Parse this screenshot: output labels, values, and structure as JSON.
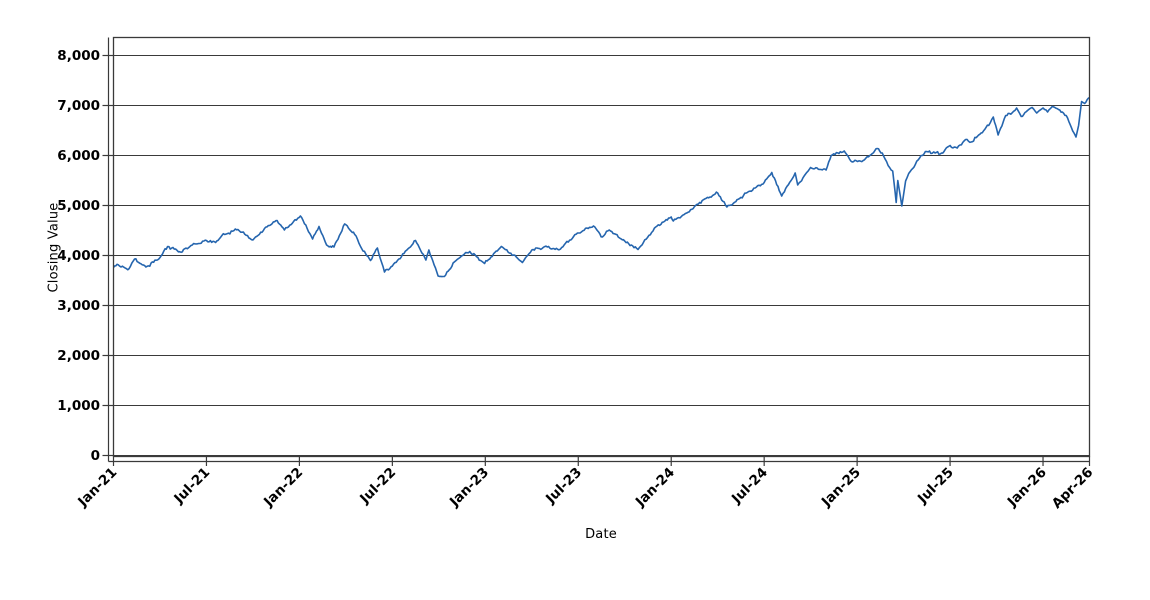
{
  "figure": {
    "background": "#ffffff"
  },
  "chart_data": {
    "type": "line",
    "title": "",
    "xlabel": "Date",
    "ylabel": "Closing Value",
    "grid": "horizontal",
    "legend": null,
    "ylim": [
      0,
      8360
    ],
    "x_months_span": 63,
    "x_ticks": [
      {
        "m": 0,
        "label": "Jan-21"
      },
      {
        "m": 6,
        "label": "Jul-21"
      },
      {
        "m": 12,
        "label": "Jan-22"
      },
      {
        "m": 18,
        "label": "Jul-22"
      },
      {
        "m": 24,
        "label": "Jan-23"
      },
      {
        "m": 30,
        "label": "Jul-23"
      },
      {
        "m": 36,
        "label": "Jan-24"
      },
      {
        "m": 42,
        "label": "Jul-24"
      },
      {
        "m": 48,
        "label": "Jan-25"
      },
      {
        "m": 54,
        "label": "Jul-25"
      },
      {
        "m": 60,
        "label": "Jan-26"
      },
      {
        "m": 63,
        "label": "Apr-26"
      }
    ],
    "y_ticks": [
      {
        "value": 0,
        "label": "0"
      },
      {
        "value": 1000,
        "label": "1,000"
      },
      {
        "value": 2000,
        "label": "2,000"
      },
      {
        "value": 3000,
        "label": "3,000"
      },
      {
        "value": 4000,
        "label": "4,000"
      },
      {
        "value": 5000,
        "label": "5,000"
      },
      {
        "value": 6000,
        "label": "6,000"
      },
      {
        "value": 7000,
        "label": "7,000"
      },
      {
        "value": 8000,
        "label": "8,000"
      }
    ],
    "colors": {
      "line": "#2565ae",
      "grid": "#3a3a3a",
      "frame": "#3a3a3a",
      "axis": "#3a3a3a",
      "text": "#000000"
    },
    "series": [
      {
        "name": "Closing Value",
        "points": [
          [
            "2021-01-01",
            3760
          ],
          [
            "2021-01-08",
            3825
          ],
          [
            "2021-01-29",
            3715
          ],
          [
            "2021-02-12",
            3930
          ],
          [
            "2021-03-04",
            3770
          ],
          [
            "2021-04-01",
            3960
          ],
          [
            "2021-04-16",
            4180
          ],
          [
            "2021-05-12",
            4065
          ],
          [
            "2021-06-01",
            4200
          ],
          [
            "2021-07-01",
            4300
          ],
          [
            "2021-07-19",
            4260
          ],
          [
            "2021-08-01",
            4400
          ],
          [
            "2021-09-02",
            4520
          ],
          [
            "2021-10-01",
            4310
          ],
          [
            "2021-11-01",
            4600
          ],
          [
            "2021-11-18",
            4700
          ],
          [
            "2021-12-02",
            4510
          ],
          [
            "2022-01-03",
            4790
          ],
          [
            "2022-01-27",
            4330
          ],
          [
            "2022-02-09",
            4580
          ],
          [
            "2022-02-24",
            4210
          ],
          [
            "2022-03-08",
            4170
          ],
          [
            "2022-03-29",
            4630
          ],
          [
            "2022-04-21",
            4390
          ],
          [
            "2022-05-02",
            4130
          ],
          [
            "2022-05-19",
            3900
          ],
          [
            "2022-06-02",
            4150
          ],
          [
            "2022-06-16",
            3670
          ],
          [
            "2022-07-01",
            3790
          ],
          [
            "2022-08-01",
            4130
          ],
          [
            "2022-08-16",
            4300
          ],
          [
            "2022-09-06",
            3910
          ],
          [
            "2022-09-12",
            4110
          ],
          [
            "2022-09-30",
            3590
          ],
          [
            "2022-10-12",
            3580
          ],
          [
            "2022-11-01",
            3870
          ],
          [
            "2022-11-15",
            3990
          ],
          [
            "2022-12-01",
            4080
          ],
          [
            "2022-12-30",
            3840
          ],
          [
            "2023-02-02",
            4180
          ],
          [
            "2023-03-01",
            3970
          ],
          [
            "2023-03-13",
            3860
          ],
          [
            "2023-04-01",
            4110
          ],
          [
            "2023-05-01",
            4170
          ],
          [
            "2023-05-24",
            4115
          ],
          [
            "2023-06-30",
            4450
          ],
          [
            "2023-07-31",
            4590
          ],
          [
            "2023-08-18",
            4370
          ],
          [
            "2023-09-01",
            4510
          ],
          [
            "2023-10-01",
            4290
          ],
          [
            "2023-10-27",
            4120
          ],
          [
            "2023-12-01",
            4570
          ],
          [
            "2024-01-01",
            4770
          ],
          [
            "2024-01-05",
            4690
          ],
          [
            "2024-02-01",
            4850
          ],
          [
            "2024-03-01",
            5100
          ],
          [
            "2024-04-01",
            5250
          ],
          [
            "2024-04-19",
            4970
          ],
          [
            "2024-05-01",
            5040
          ],
          [
            "2024-06-01",
            5280
          ],
          [
            "2024-07-01",
            5460
          ],
          [
            "2024-07-16",
            5660
          ],
          [
            "2024-08-05",
            5190
          ],
          [
            "2024-09-01",
            5650
          ],
          [
            "2024-09-06",
            5410
          ],
          [
            "2024-10-01",
            5760
          ],
          [
            "2024-11-01",
            5710
          ],
          [
            "2024-11-11",
            6000
          ],
          [
            "2024-12-06",
            6090
          ],
          [
            "2024-12-19",
            5890
          ],
          [
            "2025-01-02",
            5880
          ],
          [
            "2025-01-13",
            5900
          ],
          [
            "2025-01-31",
            6040
          ],
          [
            "2025-02-10",
            6140
          ],
          [
            "2025-02-20",
            6050
          ],
          [
            "2025-03-01",
            5800
          ],
          [
            "2025-03-10",
            5690
          ],
          [
            "2025-03-17",
            5060
          ],
          [
            "2025-03-20",
            5500
          ],
          [
            "2025-03-28",
            4990
          ],
          [
            "2025-04-05",
            5490
          ],
          [
            "2025-04-14",
            5680
          ],
          [
            "2025-04-24",
            5820
          ],
          [
            "2025-05-05",
            6000
          ],
          [
            "2025-05-16",
            6080
          ],
          [
            "2025-06-02",
            6050
          ],
          [
            "2025-06-12",
            6030
          ],
          [
            "2025-07-01",
            6200
          ],
          [
            "2025-07-15",
            6150
          ],
          [
            "2025-08-01",
            6320
          ],
          [
            "2025-08-12",
            6270
          ],
          [
            "2025-09-01",
            6450
          ],
          [
            "2025-09-16",
            6600
          ],
          [
            "2025-09-25",
            6770
          ],
          [
            "2025-10-04",
            6410
          ],
          [
            "2025-10-19",
            6800
          ],
          [
            "2025-11-01",
            6850
          ],
          [
            "2025-11-10",
            6950
          ],
          [
            "2025-11-19",
            6780
          ],
          [
            "2025-12-01",
            6900
          ],
          [
            "2025-12-10",
            6960
          ],
          [
            "2025-12-19",
            6850
          ],
          [
            "2026-01-01",
            6950
          ],
          [
            "2026-01-10",
            6870
          ],
          [
            "2026-01-19",
            6980
          ],
          [
            "2026-02-01",
            6920
          ],
          [
            "2026-02-16",
            6800
          ],
          [
            "2026-03-01",
            6450
          ],
          [
            "2026-03-05",
            6370
          ],
          [
            "2026-03-10",
            6600
          ],
          [
            "2026-03-16",
            7080
          ],
          [
            "2026-03-22",
            7040
          ],
          [
            "2026-04-01",
            7160
          ]
        ]
      }
    ]
  }
}
